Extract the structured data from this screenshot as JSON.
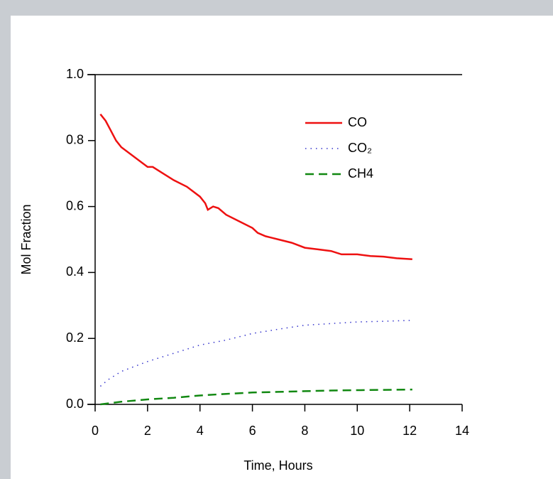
{
  "chart_data": {
    "type": "line",
    "xlabel": "Time, Hours",
    "ylabel": "Mol Fraction",
    "xlim": [
      0,
      14
    ],
    "ylim": [
      0,
      1
    ],
    "xticks": [
      0,
      2,
      4,
      6,
      8,
      10,
      12,
      14
    ],
    "yticks": [
      {
        "value": 0,
        "label": "0.0"
      },
      0.2,
      0.4,
      0.6,
      0.8,
      {
        "value": 1,
        "label": "1.0"
      }
    ],
    "legend": "upper right",
    "series": [
      {
        "name": "CO",
        "color": "#ee1111",
        "style": "solid",
        "x": [
          0.2,
          0.4,
          0.6,
          0.8,
          1.0,
          1.5,
          2.0,
          2.2,
          2.5,
          3.0,
          3.5,
          4.0,
          4.2,
          4.3,
          4.5,
          4.7,
          5.0,
          5.5,
          6.0,
          6.2,
          6.5,
          7.0,
          7.5,
          8.0,
          8.5,
          9.0,
          9.4,
          10.0,
          10.5,
          11.0,
          11.5,
          12.1
        ],
        "values": [
          0.88,
          0.86,
          0.83,
          0.8,
          0.78,
          0.75,
          0.72,
          0.72,
          0.705,
          0.68,
          0.66,
          0.63,
          0.61,
          0.59,
          0.6,
          0.595,
          0.575,
          0.555,
          0.535,
          0.52,
          0.51,
          0.5,
          0.49,
          0.475,
          0.47,
          0.465,
          0.455,
          0.455,
          0.45,
          0.448,
          0.443,
          0.44
        ]
      },
      {
        "name": "CO₂",
        "color": "#3333cc",
        "style": "dotted",
        "x": [
          0.2,
          0.5,
          1,
          2,
          3,
          4,
          5,
          6,
          7,
          8,
          9,
          10,
          11,
          12.1
        ],
        "values": [
          0.055,
          0.075,
          0.1,
          0.13,
          0.155,
          0.18,
          0.195,
          0.215,
          0.228,
          0.24,
          0.245,
          0.25,
          0.252,
          0.255
        ]
      },
      {
        "name": "CH4",
        "color": "#118811",
        "style": "dashed",
        "x": [
          0.2,
          1,
          2,
          3,
          4,
          5,
          6,
          7,
          8,
          9,
          10,
          11,
          12.1
        ],
        "values": [
          0.0,
          0.008,
          0.015,
          0.02,
          0.027,
          0.032,
          0.036,
          0.038,
          0.04,
          0.042,
          0.043,
          0.044,
          0.045
        ]
      }
    ]
  }
}
